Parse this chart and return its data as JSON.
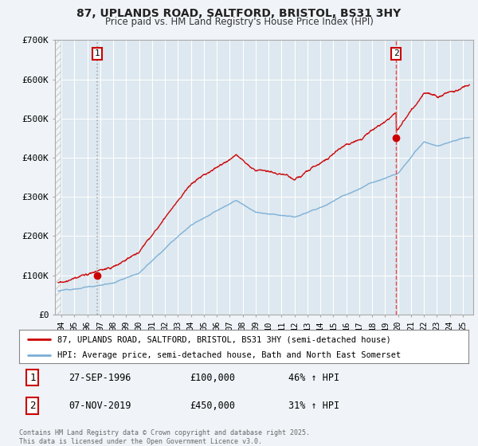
{
  "title_line1": "87, UPLANDS ROAD, SALTFORD, BRISTOL, BS31 3HY",
  "title_line2": "Price paid vs. HM Land Registry's House Price Index (HPI)",
  "legend_line1": "87, UPLANDS ROAD, SALTFORD, BRISTOL, BS31 3HY (semi-detached house)",
  "legend_line2": "HPI: Average price, semi-detached house, Bath and North East Somerset",
  "annotation1_date": "27-SEP-1996",
  "annotation1_price": "£100,000",
  "annotation1_hpi": "46% ↑ HPI",
  "annotation2_date": "07-NOV-2019",
  "annotation2_price": "£450,000",
  "annotation2_hpi": "31% ↑ HPI",
  "footnote": "Contains HM Land Registry data © Crown copyright and database right 2025.\nThis data is licensed under the Open Government Licence v3.0.",
  "property_color": "#cc0000",
  "hpi_color": "#7aaed6",
  "sale1_vline_color": "#aaaaaa",
  "sale2_vline_color": "#ee4444",
  "background_color": "#f0f4f8",
  "plot_bg_color": "#dde8f0",
  "ylim": [
    0,
    700000
  ],
  "yticks": [
    0,
    100000,
    200000,
    300000,
    400000,
    500000,
    600000,
    700000
  ],
  "ytick_labels": [
    "£0",
    "£100K",
    "£200K",
    "£300K",
    "£400K",
    "£500K",
    "£600K",
    "£700K"
  ],
  "sale1_x": 1996.75,
  "sale1_y": 100000,
  "sale2_x": 2019.85,
  "sale2_y": 450000,
  "xmin": 1993.5,
  "xmax": 2025.8
}
